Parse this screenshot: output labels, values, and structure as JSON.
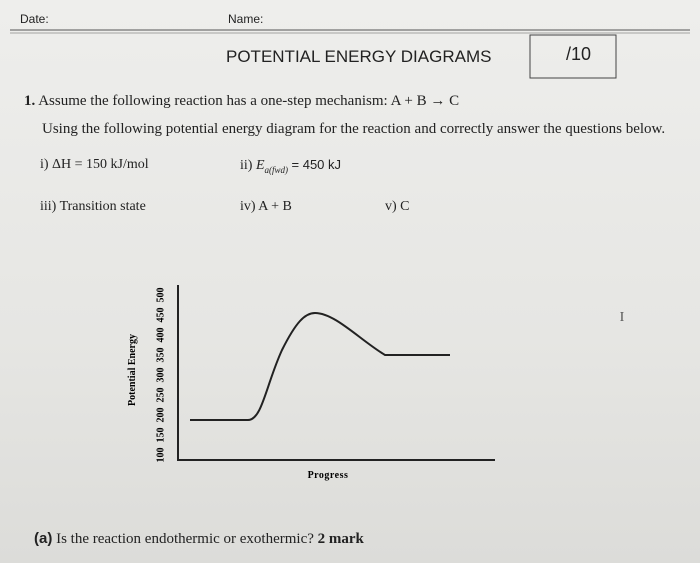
{
  "header": {
    "date": "Date:",
    "name": "Name:",
    "title": "POTENTIAL ENERGY DIAGRAMS",
    "score": "/10"
  },
  "question": {
    "number": "1.",
    "line1": "Assume the following reaction has a one-step mechanism:  A + B → C",
    "line2": "Using the following potential energy diagram for the reaction and correctly answer the questions below."
  },
  "labels": {
    "delta_h": "i) ΔH = 150 kJ/mol",
    "ea_prefix": "ii)",
    "ea_symbol": "E",
    "ea_subscript": "a(fwd)",
    "ea_value": "= 450 kJ",
    "transition_state": "iii) Transition state",
    "reactants": "iv)  A + B",
    "products": "v)  C"
  },
  "diagram": {
    "y_label": "Potential Energy",
    "y_ticks": [
      100,
      150,
      200,
      250,
      300,
      350,
      400,
      450,
      500
    ],
    "x_label": "Progress"
  },
  "part_a": {
    "label": "(a)",
    "text": "Is the reaction endothermic or exothermic?",
    "marks": "2 mark"
  }
}
